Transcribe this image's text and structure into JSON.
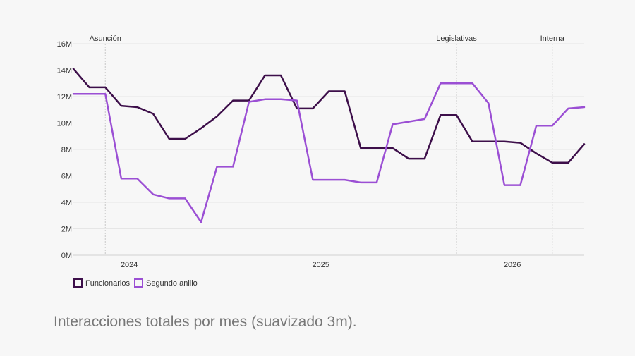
{
  "chart_data": {
    "type": "line",
    "title": "",
    "xlabel": "",
    "ylabel": "",
    "y_tick_labels": [
      "0M",
      "2M",
      "4M",
      "6M",
      "8M",
      "10M",
      "12M",
      "14M",
      "16M"
    ],
    "x_tick_labels": [
      "2024",
      "2025",
      "2026"
    ],
    "ylim": [
      0,
      16000000
    ],
    "xlim": [
      "2023-10",
      "2026-06"
    ],
    "grid": "horizontal",
    "legend_position": "bottom-left",
    "events": [
      {
        "label": "Asunción",
        "x": "2023-12"
      },
      {
        "label": "Legislativas",
        "x": "2025-10"
      },
      {
        "label": "Interna",
        "x": "2026-04"
      }
    ],
    "x": [
      "2023-10",
      "2023-11",
      "2023-12",
      "2024-01",
      "2024-02",
      "2024-03",
      "2024-04",
      "2024-05",
      "2024-06",
      "2024-07",
      "2024-08",
      "2024-09",
      "2024-10",
      "2024-11",
      "2024-12",
      "2025-01",
      "2025-02",
      "2025-03",
      "2025-04",
      "2025-05",
      "2025-06",
      "2025-07",
      "2025-08",
      "2025-09",
      "2025-10",
      "2025-11",
      "2025-12",
      "2026-01",
      "2026-02",
      "2026-03",
      "2026-04",
      "2026-05",
      "2026-06"
    ],
    "series": [
      {
        "name": "Funcionarios",
        "color": "#3d0f4a",
        "values": [
          14100000,
          12700000,
          12700000,
          11300000,
          11200000,
          10700000,
          8800000,
          8800000,
          9600000,
          10500000,
          11700000,
          11700000,
          13600000,
          13600000,
          11100000,
          11100000,
          12400000,
          12400000,
          8100000,
          8100000,
          8100000,
          7300000,
          7300000,
          10600000,
          10600000,
          8600000,
          8600000,
          8600000,
          8500000,
          7700000,
          7000000,
          7000000,
          8400000
        ]
      },
      {
        "name": "Segundo anillo",
        "color": "#9b4fd4",
        "values": [
          12200000,
          12200000,
          12200000,
          5800000,
          5800000,
          4600000,
          4300000,
          4300000,
          2500000,
          6700000,
          6700000,
          11600000,
          11800000,
          11800000,
          11700000,
          5700000,
          5700000,
          5700000,
          5500000,
          5500000,
          9900000,
          10100000,
          10300000,
          13000000,
          13000000,
          13000000,
          11500000,
          5300000,
          5300000,
          9800000,
          9800000,
          11100000,
          11200000
        ]
      }
    ]
  },
  "caption": "Interacciones totales por mes (suavizado 3m)."
}
